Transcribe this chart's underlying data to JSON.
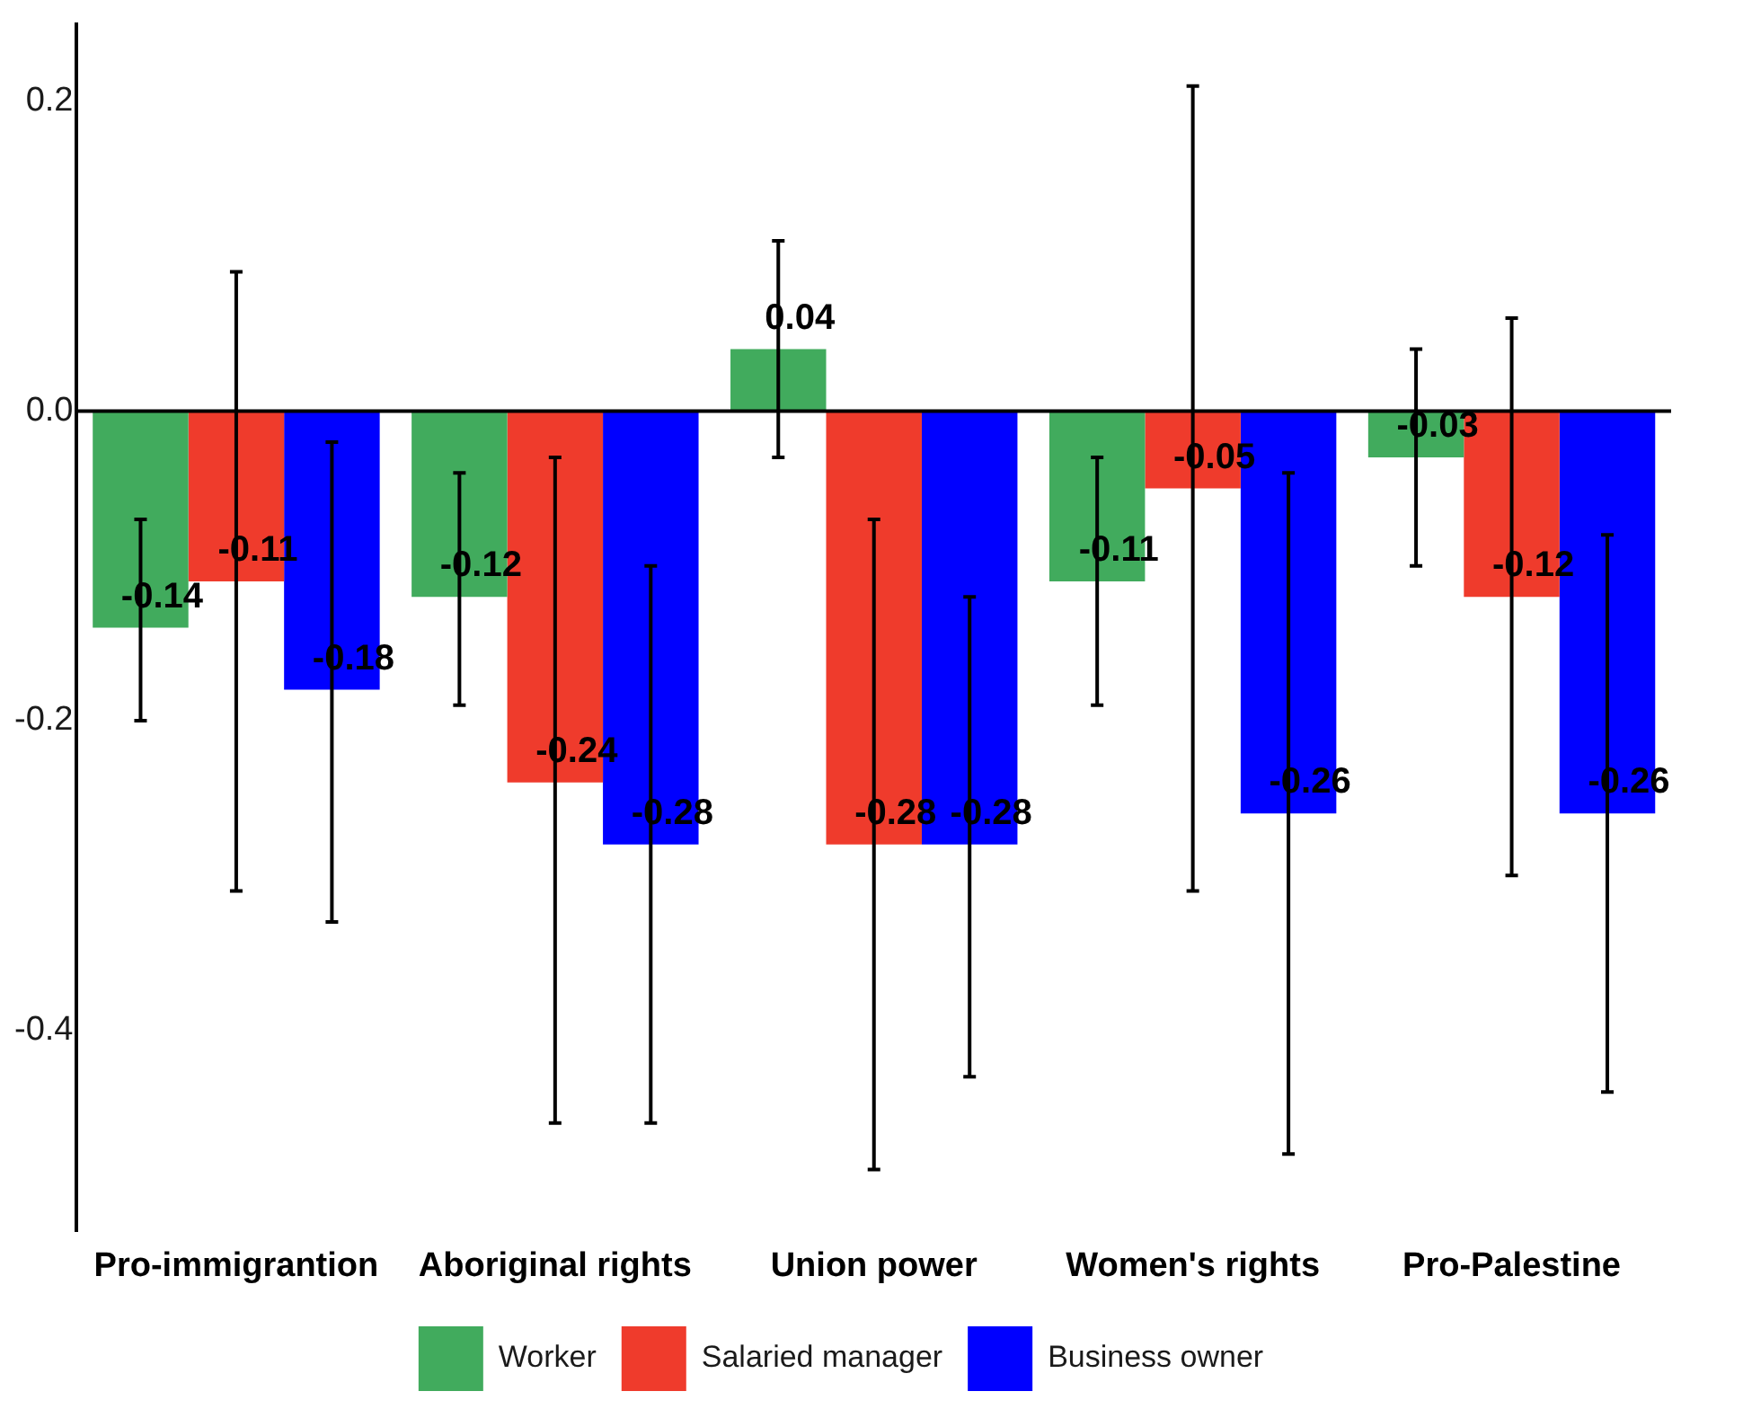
{
  "chart_data": {
    "type": "bar",
    "categories": [
      "Pro-immigrantion",
      "Aboriginal rights",
      "Union power",
      "Women's rights",
      "Pro-Palestine"
    ],
    "series": [
      {
        "name": "Worker",
        "color": "#41ab5d",
        "values": [
          -0.14,
          -0.12,
          0.04,
          -0.11,
          -0.03
        ],
        "errors": [
          [
            -0.2,
            -0.07
          ],
          [
            -0.19,
            -0.04
          ],
          [
            -0.03,
            0.11
          ],
          [
            -0.19,
            -0.03
          ],
          [
            -0.1,
            0.04
          ]
        ]
      },
      {
        "name": "Salaried manager",
        "color": "#ef3b2c",
        "values": [
          -0.11,
          -0.24,
          -0.28,
          -0.05,
          -0.12
        ],
        "errors": [
          [
            -0.31,
            0.09
          ],
          [
            -0.46,
            -0.03
          ],
          [
            -0.49,
            -0.07
          ],
          [
            -0.31,
            0.21
          ],
          [
            -0.3,
            0.06
          ]
        ]
      },
      {
        "name": "Business owner",
        "color": "#0000ff",
        "values": [
          -0.18,
          -0.28,
          -0.28,
          -0.26,
          -0.26
        ],
        "errors": [
          [
            -0.33,
            -0.02
          ],
          [
            -0.46,
            -0.1
          ],
          [
            -0.43,
            -0.12
          ],
          [
            -0.48,
            -0.04
          ],
          [
            -0.44,
            -0.08
          ]
        ]
      }
    ],
    "ylim": [
      -0.53,
      0.25
    ],
    "yticks": [
      -0.4,
      -0.2,
      {
        "value": 0,
        "label": "0.0"
      },
      0.2
    ],
    "ref_lines": [
      {
        "axis": "y",
        "value": 0,
        "color": "#000000"
      }
    ],
    "data_labels": true,
    "legend": "bottom",
    "grid": false
  }
}
